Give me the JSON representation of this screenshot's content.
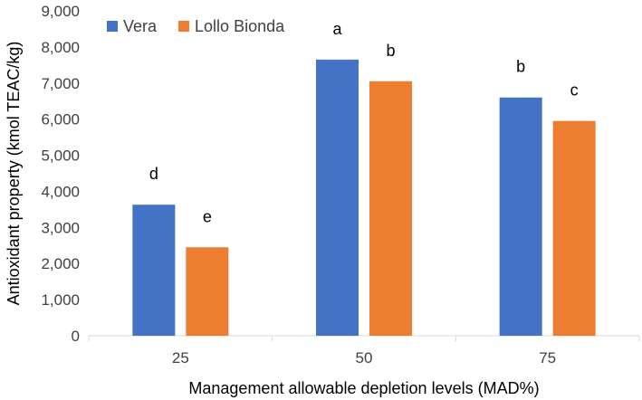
{
  "chart_data": {
    "type": "bar",
    "title": "",
    "xlabel": "Management allowable depletion levels (MAD%)",
    "ylabel": "Antioxidant property (kmol TEAC/kg)",
    "categories": [
      "25",
      "50",
      "75"
    ],
    "ylim": [
      0,
      9000
    ],
    "ytick_values": [
      0,
      1000,
      2000,
      3000,
      4000,
      5000,
      6000,
      7000,
      8000,
      9000
    ],
    "ytick_labels": [
      "0",
      "1,000",
      "2,000",
      "3,000",
      "4,000",
      "5,000",
      "6,000",
      "7,000",
      "8,000",
      "9,000"
    ],
    "grid": false,
    "legend_position": "top-left",
    "series": [
      {
        "name": "Vera",
        "color": "#4472C4",
        "values": [
          3630,
          7650,
          6600
        ],
        "letters": [
          "d",
          "a",
          "b"
        ]
      },
      {
        "name": "Lollo Bionda",
        "color": "#ED7D31",
        "values": [
          2450,
          7050,
          5950
        ],
        "letters": [
          "e",
          "b",
          "c"
        ]
      }
    ]
  }
}
